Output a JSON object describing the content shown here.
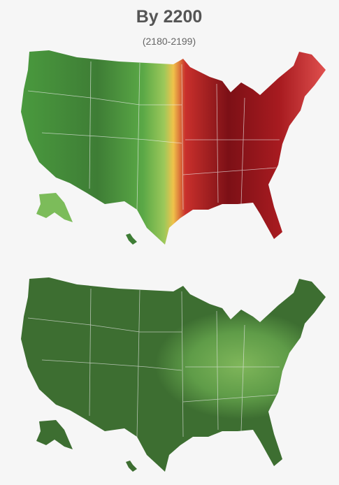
{
  "title": "By 2200",
  "subtitle": "(2180-2199)"
}
